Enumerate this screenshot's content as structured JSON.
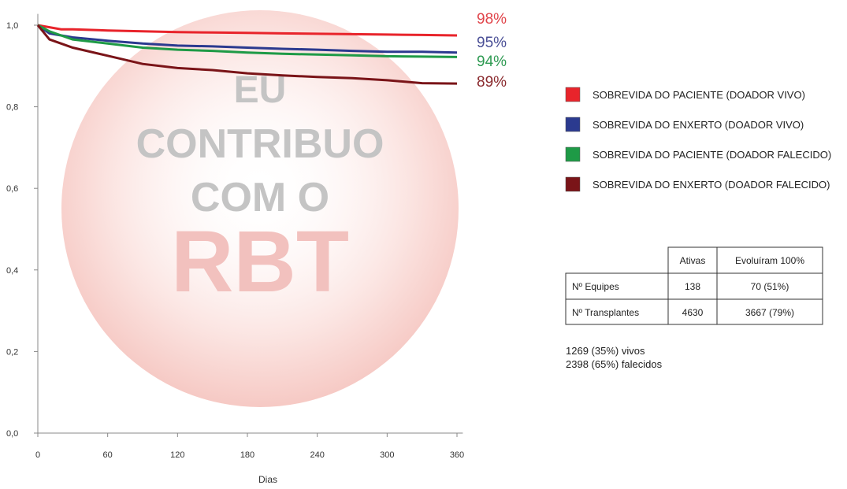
{
  "chart_data": {
    "type": "line",
    "x_label": "Dias",
    "x": [
      0,
      10,
      20,
      30,
      60,
      90,
      120,
      150,
      180,
      210,
      240,
      270,
      300,
      330,
      360
    ],
    "xlim": [
      0,
      365
    ],
    "xticks": [
      0,
      60,
      120,
      180,
      240,
      300,
      360
    ],
    "ylim": [
      0,
      1.02
    ],
    "yticks": [
      {
        "value": 0,
        "label": "0,0"
      },
      {
        "value": 0.2,
        "label": "0,2"
      },
      {
        "value": 0.4,
        "label": "0,4"
      },
      {
        "value": 0.6,
        "label": "0,6"
      },
      {
        "value": 0.8,
        "label": "0,8"
      },
      {
        "value": 1.0,
        "label": "1,0"
      }
    ],
    "series": [
      {
        "name": "SOBREVIDA DO PACIENTE (DOADOR VIVO)",
        "color": "#e8242b",
        "annotation": "98%",
        "annotation_color": "#e0444a",
        "values": [
          1.0,
          0.995,
          0.99,
          0.99,
          0.987,
          0.985,
          0.983,
          0.982,
          0.981,
          0.98,
          0.979,
          0.978,
          0.977,
          0.976,
          0.975
        ]
      },
      {
        "name": "SOBREVIDA DO ENXERTO (DOADOR VIVO)",
        "color": "#2b3a8f",
        "annotation": "95%",
        "annotation_color": "#4a4f96",
        "values": [
          1.0,
          0.98,
          0.975,
          0.97,
          0.962,
          0.955,
          0.95,
          0.948,
          0.945,
          0.942,
          0.94,
          0.937,
          0.935,
          0.935,
          0.933
        ]
      },
      {
        "name": "SOBREVIDA DO PACIENTE (DOADOR FALECIDO)",
        "color": "#1e9a46",
        "annotation": "94%",
        "annotation_color": "#2e9a52",
        "values": [
          1.0,
          0.985,
          0.975,
          0.965,
          0.955,
          0.945,
          0.94,
          0.937,
          0.933,
          0.93,
          0.928,
          0.926,
          0.924,
          0.923,
          0.922
        ]
      },
      {
        "name": "SOBREVIDA DO ENXERTO (DOADOR FALECIDO)",
        "color": "#7a1418",
        "annotation": "89%",
        "annotation_color": "#8a2a2e",
        "values": [
          1.0,
          0.965,
          0.955,
          0.945,
          0.925,
          0.905,
          0.895,
          0.89,
          0.882,
          0.877,
          0.873,
          0.87,
          0.865,
          0.858,
          0.857
        ]
      }
    ],
    "watermark": [
      "EU",
      "CONTRIBUO",
      "COM O",
      "RBT"
    ]
  },
  "table": {
    "header": [
      "Ativas",
      "Evoluíram 100%"
    ],
    "rows": [
      [
        "Nº Equipes",
        "138",
        "70 (51%)"
      ],
      [
        "Nº Transplantes",
        "4630",
        "3667 (79%)"
      ]
    ]
  },
  "notes": [
    "1269 (35%) vivos",
    "2398 (65%) falecidos"
  ]
}
